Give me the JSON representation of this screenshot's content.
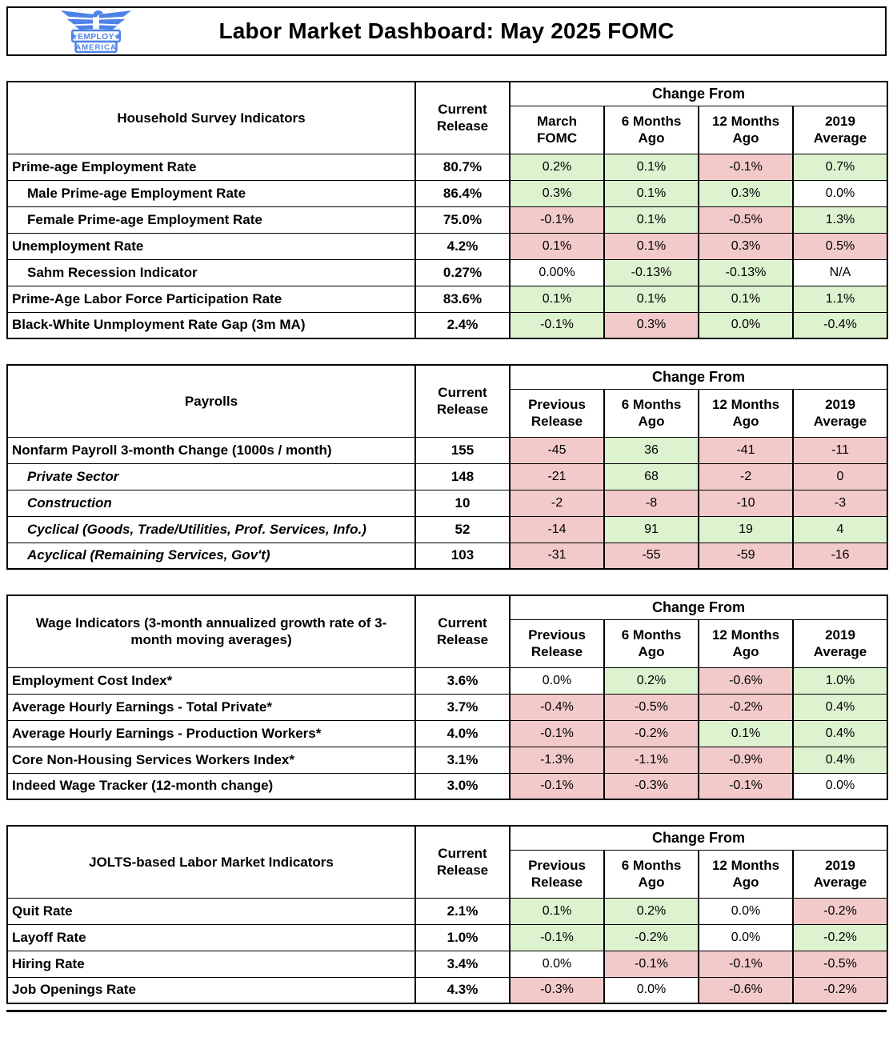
{
  "header": {
    "title": "Labor Market Dashboard: May 2025 FOMC",
    "logo": {
      "line1": "★EMPLOY★",
      "line2": "AMERICA"
    }
  },
  "colors": {
    "positive_bg": "#ddf2cf",
    "negative_bg": "#f3caca",
    "logo_blue": "#4d82e8"
  },
  "tables": [
    {
      "id": "household-survey",
      "name": "Household Survey Indicators",
      "current_label": "Current Release",
      "change_from_label": "Change From",
      "columns": [
        "March FOMC",
        "6 Months Ago",
        "12 Months Ago",
        "2019 Average"
      ],
      "rows": [
        {
          "label": "Prime-age Employment Rate",
          "indent": false,
          "italic": false,
          "current": "80.7%",
          "changes": [
            {
              "v": "0.2%",
              "c": "g"
            },
            {
              "v": "0.1%",
              "c": "g"
            },
            {
              "v": "-0.1%",
              "c": "r"
            },
            {
              "v": "0.7%",
              "c": "g"
            }
          ]
        },
        {
          "label": "Male Prime-age Employment Rate",
          "indent": true,
          "italic": false,
          "current": "86.4%",
          "changes": [
            {
              "v": "0.3%",
              "c": "g"
            },
            {
              "v": "0.1%",
              "c": "g"
            },
            {
              "v": "0.3%",
              "c": "g"
            },
            {
              "v": "0.0%",
              "c": "w"
            }
          ]
        },
        {
          "label": "Female Prime-age Employment Rate",
          "indent": true,
          "italic": false,
          "current": "75.0%",
          "changes": [
            {
              "v": "-0.1%",
              "c": "r"
            },
            {
              "v": "0.1%",
              "c": "g"
            },
            {
              "v": "-0.5%",
              "c": "r"
            },
            {
              "v": "1.3%",
              "c": "g"
            }
          ]
        },
        {
          "label": "Unemployment Rate",
          "indent": false,
          "italic": false,
          "current": "4.2%",
          "changes": [
            {
              "v": "0.1%",
              "c": "r"
            },
            {
              "v": "0.1%",
              "c": "r"
            },
            {
              "v": "0.3%",
              "c": "r"
            },
            {
              "v": "0.5%",
              "c": "r"
            }
          ]
        },
        {
          "label": "Sahm Recession Indicator",
          "indent": true,
          "italic": false,
          "current": "0.27%",
          "changes": [
            {
              "v": "0.00%",
              "c": "w"
            },
            {
              "v": "-0.13%",
              "c": "g"
            },
            {
              "v": "-0.13%",
              "c": "g"
            },
            {
              "v": "N/A",
              "c": "w"
            }
          ]
        },
        {
          "label": "Prime-Age Labor Force Participation Rate",
          "indent": false,
          "italic": false,
          "current": "83.6%",
          "changes": [
            {
              "v": "0.1%",
              "c": "g"
            },
            {
              "v": "0.1%",
              "c": "g"
            },
            {
              "v": "0.1%",
              "c": "g"
            },
            {
              "v": "1.1%",
              "c": "g"
            }
          ]
        },
        {
          "label": "Black-White Unmployment Rate Gap (3m MA)",
          "indent": false,
          "italic": false,
          "current": "2.4%",
          "changes": [
            {
              "v": "-0.1%",
              "c": "g"
            },
            {
              "v": "0.3%",
              "c": "r"
            },
            {
              "v": "0.0%",
              "c": "g"
            },
            {
              "v": "-0.4%",
              "c": "g"
            }
          ]
        }
      ]
    },
    {
      "id": "payrolls",
      "name": "Payrolls",
      "current_label": "Current Release",
      "change_from_label": "Change From",
      "columns": [
        "Previous Release",
        "6 Months Ago",
        "12 Months Ago",
        "2019 Average"
      ],
      "rows": [
        {
          "label": "Nonfarm Payroll 3-month Change (1000s / month)",
          "indent": false,
          "italic": false,
          "current": "155",
          "changes": [
            {
              "v": "-45",
              "c": "r"
            },
            {
              "v": "36",
              "c": "g"
            },
            {
              "v": "-41",
              "c": "r"
            },
            {
              "v": "-11",
              "c": "r"
            }
          ]
        },
        {
          "label": "Private Sector",
          "indent": true,
          "italic": true,
          "current": "148",
          "changes": [
            {
              "v": "-21",
              "c": "r"
            },
            {
              "v": "68",
              "c": "g"
            },
            {
              "v": "-2",
              "c": "r"
            },
            {
              "v": "0",
              "c": "r"
            }
          ]
        },
        {
          "label": "Construction",
          "indent": true,
          "italic": true,
          "current": "10",
          "changes": [
            {
              "v": "-2",
              "c": "r"
            },
            {
              "v": "-8",
              "c": "r"
            },
            {
              "v": "-10",
              "c": "r"
            },
            {
              "v": "-3",
              "c": "r"
            }
          ]
        },
        {
          "label": "Cyclical (Goods, Trade/Utilities, Prof. Services, Info.)",
          "indent": true,
          "italic": true,
          "current": "52",
          "changes": [
            {
              "v": "-14",
              "c": "r"
            },
            {
              "v": "91",
              "c": "g"
            },
            {
              "v": "19",
              "c": "g"
            },
            {
              "v": "4",
              "c": "g"
            }
          ]
        },
        {
          "label": "Acyclical (Remaining Services, Gov't)",
          "indent": true,
          "italic": true,
          "current": "103",
          "changes": [
            {
              "v": "-31",
              "c": "r"
            },
            {
              "v": "-55",
              "c": "r"
            },
            {
              "v": "-59",
              "c": "r"
            },
            {
              "v": "-16",
              "c": "r"
            }
          ]
        }
      ]
    },
    {
      "id": "wage-indicators",
      "name": "Wage Indicators (3-month annualized growth rate of 3-month moving averages)",
      "current_label": "Current Release",
      "change_from_label": "Change From",
      "columns": [
        "Previous Release",
        "6 Months Ago",
        "12 Months Ago",
        "2019 Average"
      ],
      "rows": [
        {
          "label": "Employment Cost Index*",
          "indent": false,
          "italic": false,
          "current": "3.6%",
          "changes": [
            {
              "v": "0.0%",
              "c": "w"
            },
            {
              "v": "0.2%",
              "c": "g"
            },
            {
              "v": "-0.6%",
              "c": "r"
            },
            {
              "v": "1.0%",
              "c": "g"
            }
          ]
        },
        {
          "label": "Average Hourly Earnings - Total Private*",
          "indent": false,
          "italic": false,
          "current": "3.7%",
          "changes": [
            {
              "v": "-0.4%",
              "c": "r"
            },
            {
              "v": "-0.5%",
              "c": "r"
            },
            {
              "v": "-0.2%",
              "c": "r"
            },
            {
              "v": "0.4%",
              "c": "g"
            }
          ]
        },
        {
          "label": "Average Hourly Earnings - Production Workers*",
          "indent": false,
          "italic": false,
          "current": "4.0%",
          "changes": [
            {
              "v": "-0.1%",
              "c": "r"
            },
            {
              "v": "-0.2%",
              "c": "r"
            },
            {
              "v": "0.1%",
              "c": "g"
            },
            {
              "v": "0.4%",
              "c": "g"
            }
          ]
        },
        {
          "label": "Core Non-Housing Services Workers Index*",
          "indent": false,
          "italic": false,
          "current": "3.1%",
          "changes": [
            {
              "v": "-1.3%",
              "c": "r"
            },
            {
              "v": "-1.1%",
              "c": "r"
            },
            {
              "v": "-0.9%",
              "c": "r"
            },
            {
              "v": "0.4%",
              "c": "g"
            }
          ]
        },
        {
          "label": "Indeed Wage Tracker (12-month change)",
          "indent": false,
          "italic": false,
          "current": "3.0%",
          "changes": [
            {
              "v": "-0.1%",
              "c": "r"
            },
            {
              "v": "-0.3%",
              "c": "r"
            },
            {
              "v": "-0.1%",
              "c": "r"
            },
            {
              "v": "0.0%",
              "c": "w"
            }
          ]
        }
      ]
    },
    {
      "id": "jolts",
      "name": "JOLTS-based Labor Market Indicators",
      "current_label": "Current Release",
      "change_from_label": "Change From",
      "columns": [
        "Previous Release",
        "6 Months Ago",
        "12 Months Ago",
        "2019 Average"
      ],
      "rows": [
        {
          "label": "Quit Rate",
          "indent": false,
          "italic": false,
          "current": "2.1%",
          "changes": [
            {
              "v": "0.1%",
              "c": "g"
            },
            {
              "v": "0.2%",
              "c": "g"
            },
            {
              "v": "0.0%",
              "c": "w"
            },
            {
              "v": "-0.2%",
              "c": "r"
            }
          ]
        },
        {
          "label": "Layoff Rate",
          "indent": false,
          "italic": false,
          "current": "1.0%",
          "changes": [
            {
              "v": "-0.1%",
              "c": "g"
            },
            {
              "v": "-0.2%",
              "c": "g"
            },
            {
              "v": "0.0%",
              "c": "w"
            },
            {
              "v": "-0.2%",
              "c": "g"
            }
          ]
        },
        {
          "label": "Hiring Rate",
          "indent": false,
          "italic": false,
          "current": "3.4%",
          "changes": [
            {
              "v": "0.0%",
              "c": "w"
            },
            {
              "v": "-0.1%",
              "c": "r"
            },
            {
              "v": "-0.1%",
              "c": "r"
            },
            {
              "v": "-0.5%",
              "c": "r"
            }
          ]
        },
        {
          "label": "Job Openings Rate",
          "indent": false,
          "italic": false,
          "current": "4.3%",
          "changes": [
            {
              "v": "-0.3%",
              "c": "r"
            },
            {
              "v": "0.0%",
              "c": "w"
            },
            {
              "v": "-0.6%",
              "c": "r"
            },
            {
              "v": "-0.2%",
              "c": "r"
            }
          ]
        }
      ]
    }
  ],
  "chart_data": [
    {
      "type": "table",
      "title": "Household Survey Indicators",
      "columns": [
        "Indicator",
        "Current Release",
        "Change From March FOMC",
        "Change From 6 Months Ago",
        "Change From 12 Months Ago",
        "Change From 2019 Average"
      ],
      "rows": [
        [
          "Prime-age Employment Rate",
          "80.7%",
          "0.2%",
          "0.1%",
          "-0.1%",
          "0.7%"
        ],
        [
          "Male Prime-age Employment Rate",
          "86.4%",
          "0.3%",
          "0.1%",
          "0.3%",
          "0.0%"
        ],
        [
          "Female Prime-age Employment Rate",
          "75.0%",
          "-0.1%",
          "0.1%",
          "-0.5%",
          "1.3%"
        ],
        [
          "Unemployment Rate",
          "4.2%",
          "0.1%",
          "0.1%",
          "0.3%",
          "0.5%"
        ],
        [
          "Sahm Recession Indicator",
          "0.27%",
          "0.00%",
          "-0.13%",
          "-0.13%",
          "N/A"
        ],
        [
          "Prime-Age Labor Force Participation Rate",
          "83.6%",
          "0.1%",
          "0.1%",
          "0.1%",
          "1.1%"
        ],
        [
          "Black-White Unmployment Rate Gap (3m MA)",
          "2.4%",
          "-0.1%",
          "0.3%",
          "0.0%",
          "-0.4%"
        ]
      ]
    },
    {
      "type": "table",
      "title": "Payrolls",
      "columns": [
        "Indicator",
        "Current Release",
        "Change From Previous Release",
        "Change From 6 Months Ago",
        "Change From 12 Months Ago",
        "Change From 2019 Average"
      ],
      "rows": [
        [
          "Nonfarm Payroll 3-month Change (1000s / month)",
          155,
          -45,
          36,
          -41,
          -11
        ],
        [
          "Private Sector",
          148,
          -21,
          68,
          -2,
          0
        ],
        [
          "Construction",
          10,
          -2,
          -8,
          -10,
          -3
        ],
        [
          "Cyclical (Goods, Trade/Utilities, Prof. Services, Info.)",
          52,
          -14,
          91,
          19,
          4
        ],
        [
          "Acyclical (Remaining Services, Gov't)",
          103,
          -31,
          -55,
          -59,
          -16
        ]
      ]
    },
    {
      "type": "table",
      "title": "Wage Indicators (3-month annualized growth rate of 3-month moving averages)",
      "columns": [
        "Indicator",
        "Current Release",
        "Change From Previous Release",
        "Change From 6 Months Ago",
        "Change From 12 Months Ago",
        "Change From 2019 Average"
      ],
      "rows": [
        [
          "Employment Cost Index*",
          "3.6%",
          "0.0%",
          "0.2%",
          "-0.6%",
          "1.0%"
        ],
        [
          "Average Hourly Earnings - Total Private*",
          "3.7%",
          "-0.4%",
          "-0.5%",
          "-0.2%",
          "0.4%"
        ],
        [
          "Average Hourly Earnings - Production Workers*",
          "4.0%",
          "-0.1%",
          "-0.2%",
          "0.1%",
          "0.4%"
        ],
        [
          "Core Non-Housing Services Workers Index*",
          "3.1%",
          "-1.3%",
          "-1.1%",
          "-0.9%",
          "0.4%"
        ],
        [
          "Indeed Wage Tracker (12-month change)",
          "3.0%",
          "-0.1%",
          "-0.3%",
          "-0.1%",
          "0.0%"
        ]
      ]
    },
    {
      "type": "table",
      "title": "JOLTS-based Labor Market Indicators",
      "columns": [
        "Indicator",
        "Current Release",
        "Change From Previous Release",
        "Change From 6 Months Ago",
        "Change From 12 Months Ago",
        "Change From 2019 Average"
      ],
      "rows": [
        [
          "Quit Rate",
          "2.1%",
          "0.1%",
          "0.2%",
          "0.0%",
          "-0.2%"
        ],
        [
          "Layoff Rate",
          "1.0%",
          "-0.1%",
          "-0.2%",
          "0.0%",
          "-0.2%"
        ],
        [
          "Hiring Rate",
          "3.4%",
          "0.0%",
          "-0.1%",
          "-0.1%",
          "-0.5%"
        ],
        [
          "Job Openings Rate",
          "4.3%",
          "-0.3%",
          "0.0%",
          "-0.6%",
          "-0.2%"
        ]
      ]
    }
  ]
}
